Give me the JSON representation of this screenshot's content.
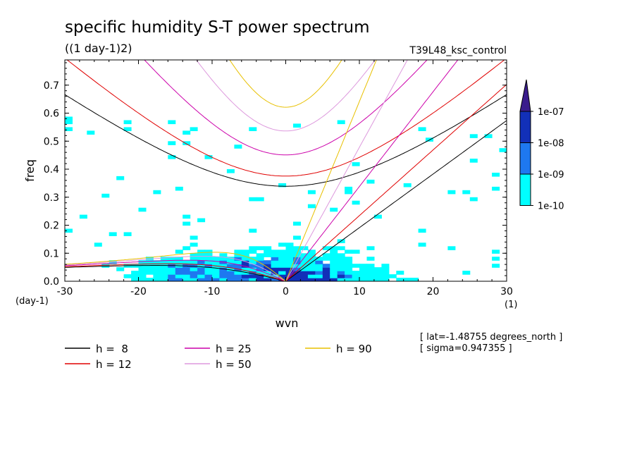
{
  "chart_data": {
    "type": "heatmap",
    "title": "specific humidity S-T power spectrum",
    "subtitle": "((1 day-1)2)",
    "run_label": "T39L48_ksc_control",
    "xlabel": "wvn",
    "ylabel": "freq",
    "x_unit": "(1)",
    "y_unit": "(day-1)",
    "xlim": [
      -30,
      30
    ],
    "ylim": [
      0,
      0.79
    ],
    "x_ticks": [
      -30,
      -20,
      -10,
      0,
      10,
      20,
      30
    ],
    "x_tick_labels": [
      "-30",
      "-20",
      "-10",
      "0",
      "10",
      "20",
      "30"
    ],
    "y_ticks": [
      0,
      0.1,
      0.2,
      0.3,
      0.4,
      0.5,
      0.6,
      0.7
    ],
    "y_tick_labels": [
      "0.0",
      "0.1",
      "0.2",
      "0.3",
      "0.4",
      "0.5",
      "0.6",
      "0.7"
    ],
    "colorbar": {
      "labels": [
        "1e-07",
        "1e-08",
        "1e-09",
        "1e-10"
      ],
      "colors": [
        "#3a1c8c",
        "#1230b8",
        "#1e78f0",
        "#00ffff"
      ]
    },
    "contour_colors": {
      "lt1e-9": "#00ffff",
      "1e-9": "#1e78f0",
      "1e-8": "#1230b8"
    },
    "dispersion_curves": [
      {
        "name": "h =  8",
        "h": 8,
        "color": "#000000"
      },
      {
        "name": "h = 12",
        "h": 12,
        "color": "#e00000"
      },
      {
        "name": "h = 25",
        "h": 25,
        "color": "#cc00aa"
      },
      {
        "name": "h = 50",
        "h": 50,
        "color": "#dd99dd"
      },
      {
        "name": "h = 90",
        "h": 90,
        "color": "#e8c000"
      }
    ],
    "annotations": [
      "[ lat=-1.48755 degrees_north ]",
      "[ sigma=0.947355 ]"
    ]
  }
}
